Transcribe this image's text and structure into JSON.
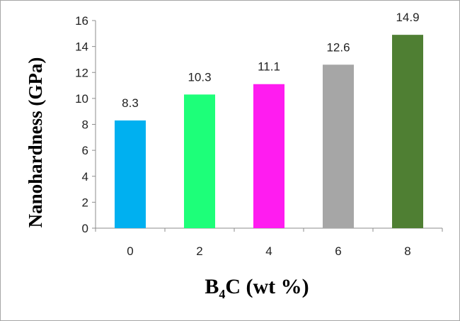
{
  "chart_data": {
    "type": "bar",
    "categories": [
      "0",
      "2",
      "4",
      "6",
      "8"
    ],
    "values": [
      8.3,
      10.3,
      11.1,
      12.6,
      14.9
    ],
    "data_labels": [
      "8.3",
      "10.3",
      "11.1",
      "12.6",
      "14.9"
    ],
    "bar_colors": [
      "#00b0f0",
      "#1dff79",
      "#ff1cf0",
      "#a6a6a6",
      "#4f7f33"
    ],
    "title": "",
    "xlabel": {
      "main": "B",
      "sub": "4",
      "rest": "C (wt %)"
    },
    "ylabel": "Nanohardness (GPa)",
    "ylim": [
      0,
      16
    ],
    "yticks": [
      "0",
      "2",
      "4",
      "6",
      "8",
      "10",
      "12",
      "14",
      "16"
    ],
    "grid": false,
    "legend": "none"
  }
}
